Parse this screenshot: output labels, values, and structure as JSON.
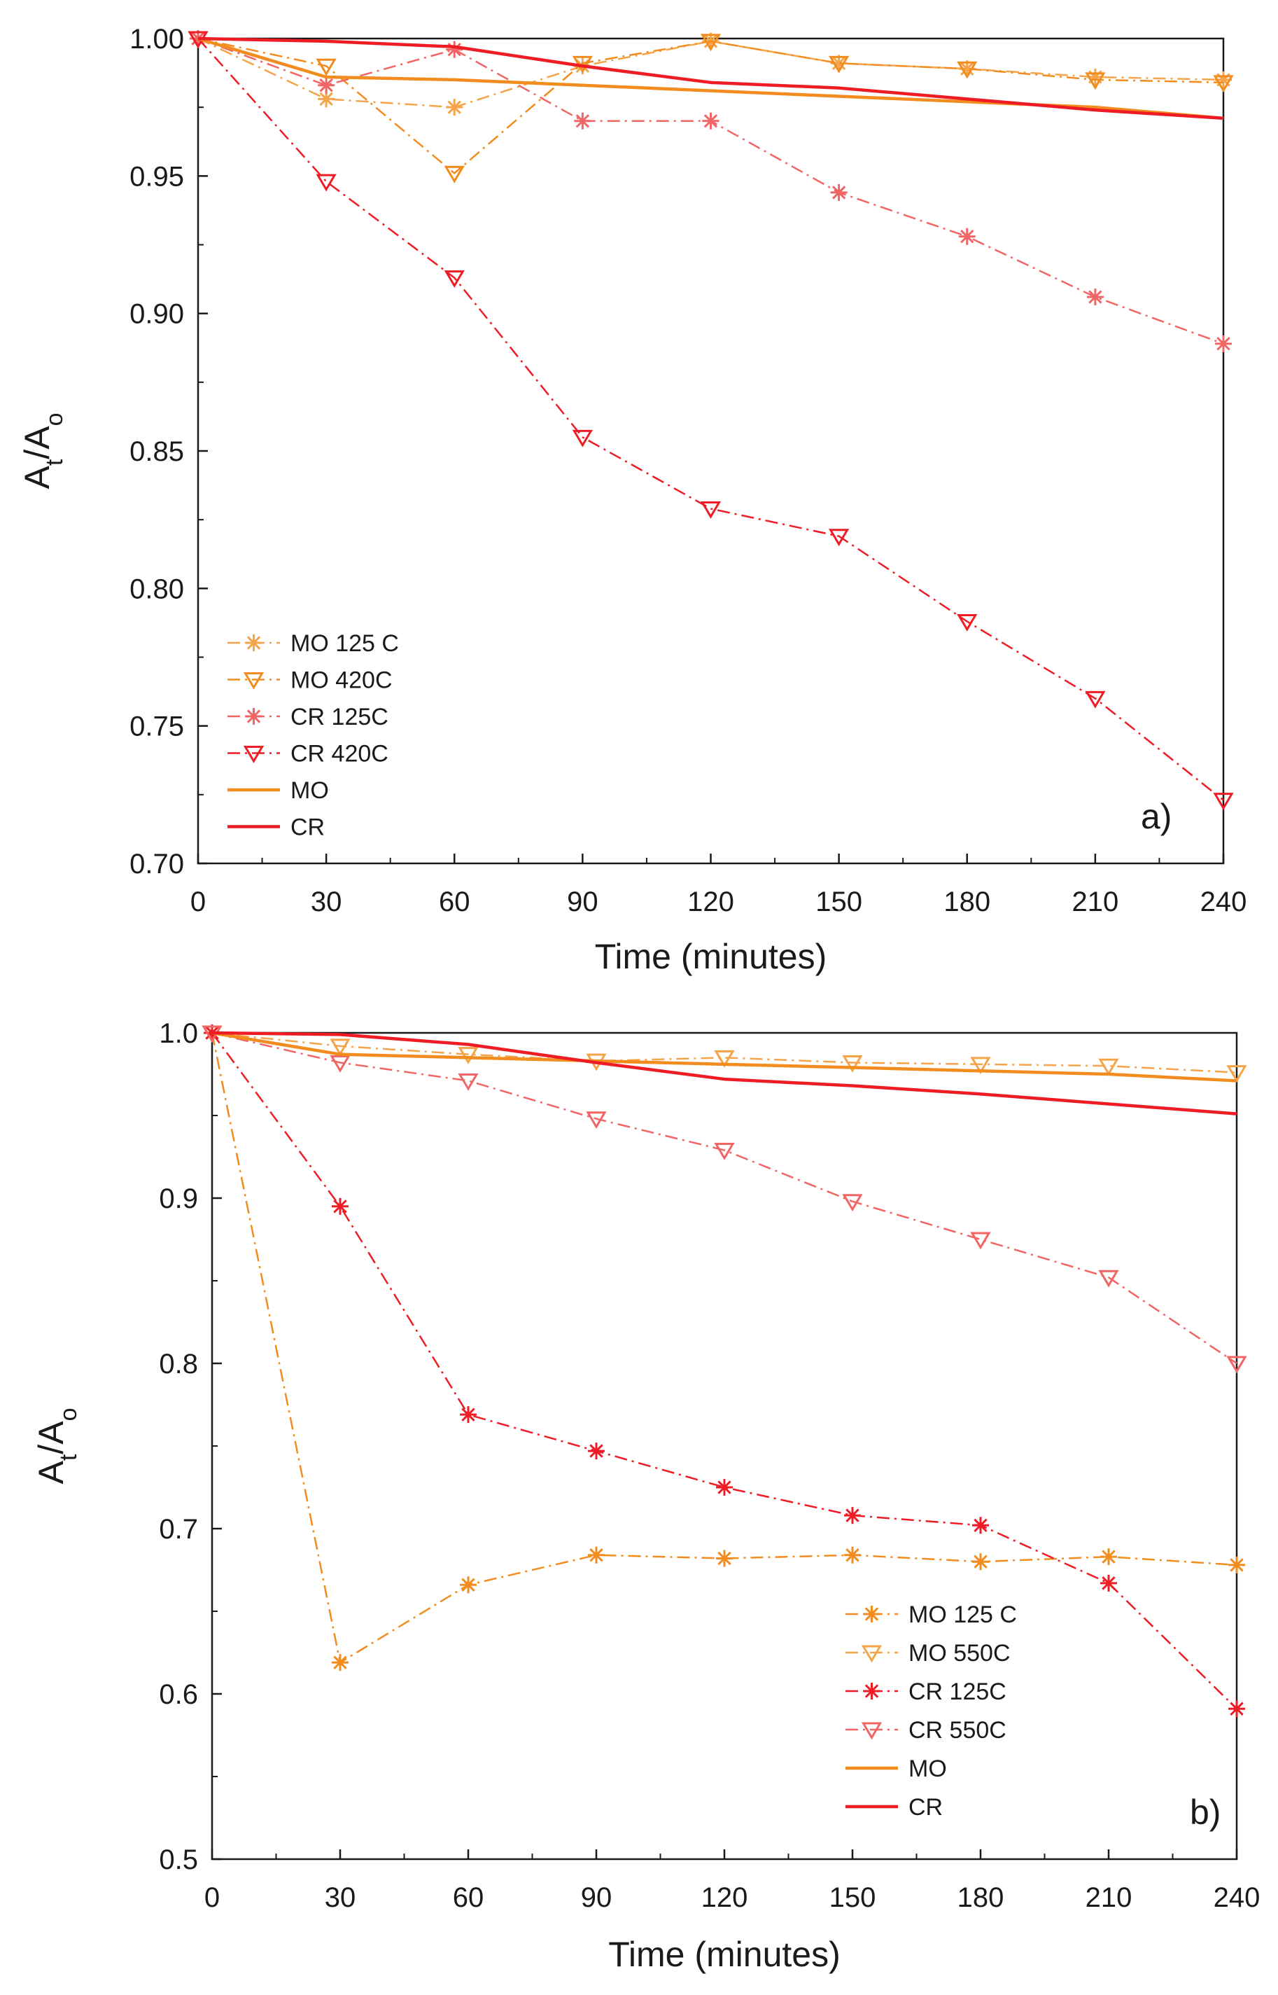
{
  "colors": {
    "orange": "#f28c1e",
    "light_orange": "#f5a44a",
    "red": "#ee1c25",
    "light_red": "#f26565",
    "axis": "#1a1a1a"
  },
  "chart_data": [
    {
      "type": "line",
      "panel": "a)",
      "xlabel": "Time (minutes)",
      "ylabel": "At/Ao",
      "xlim": [
        0,
        240
      ],
      "ylim": [
        0.7,
        1.0
      ],
      "xticks": [
        0,
        30,
        60,
        90,
        120,
        150,
        180,
        210,
        240
      ],
      "xtick_labels": [
        "0",
        "30",
        "60",
        "90",
        "120",
        "150",
        "180",
        "210",
        "240"
      ],
      "yticks": [
        0.7,
        0.75,
        0.8,
        0.85,
        0.9,
        0.95,
        1.0
      ],
      "ytick_labels": [
        "0.70",
        "0.75",
        "0.80",
        "0.85",
        "0.90",
        "0.95",
        "1.00"
      ],
      "legend_position": "lower-left",
      "series": [
        {
          "name": "MO 125 C",
          "color": "#f5a44a",
          "style": "dashdot",
          "marker": "asterisk",
          "x": [
            0,
            30,
            60,
            90,
            120,
            150,
            180,
            210,
            240
          ],
          "values": [
            1.0,
            0.978,
            0.975,
            0.99,
            0.999,
            0.991,
            0.989,
            0.986,
            0.985
          ]
        },
        {
          "name": "MO 420C",
          "color": "#f28c1e",
          "style": "dashdot",
          "marker": "triangle-down",
          "x": [
            0,
            30,
            60,
            90,
            120,
            150,
            180,
            210,
            240
          ],
          "values": [
            1.0,
            0.99,
            0.951,
            0.991,
            0.999,
            0.991,
            0.989,
            0.985,
            0.984
          ]
        },
        {
          "name": "CR 125C",
          "color": "#f26565",
          "style": "dashdot",
          "marker": "asterisk",
          "x": [
            0,
            30,
            60,
            90,
            120,
            150,
            180,
            210,
            240
          ],
          "values": [
            1.0,
            0.983,
            0.996,
            0.97,
            0.97,
            0.944,
            0.928,
            0.906,
            0.889
          ]
        },
        {
          "name": "CR 420C",
          "color": "#ee1c25",
          "style": "dashdot",
          "marker": "triangle-down",
          "x": [
            0,
            30,
            60,
            90,
            120,
            150,
            180,
            210,
            240
          ],
          "values": [
            1.0,
            0.948,
            0.913,
            0.855,
            0.829,
            0.819,
            0.788,
            0.76,
            0.723
          ]
        },
        {
          "name": "MO",
          "color": "#f28c1e",
          "style": "solid",
          "marker": "none",
          "x": [
            0,
            30,
            60,
            90,
            120,
            150,
            180,
            210,
            240
          ],
          "values": [
            1.0,
            0.986,
            0.985,
            0.983,
            0.981,
            0.979,
            0.977,
            0.975,
            0.971
          ]
        },
        {
          "name": "CR",
          "color": "#ee1c25",
          "style": "solid",
          "marker": "none",
          "x": [
            0,
            30,
            60,
            90,
            120,
            150,
            180,
            210,
            240
          ],
          "values": [
            1.0,
            0.999,
            0.997,
            0.99,
            0.984,
            0.982,
            0.978,
            0.974,
            0.971
          ]
        }
      ]
    },
    {
      "type": "line",
      "panel": "b)",
      "xlabel": "Time (minutes)",
      "ylabel": "At/Ao",
      "xlim": [
        0,
        240
      ],
      "ylim": [
        0.5,
        1.0
      ],
      "xticks": [
        0,
        30,
        60,
        90,
        120,
        150,
        180,
        210,
        240
      ],
      "xtick_labels": [
        "0",
        "30",
        "60",
        "90",
        "120",
        "150",
        "180",
        "210",
        "240"
      ],
      "yticks": [
        0.5,
        0.6,
        0.7,
        0.8,
        0.9,
        1.0
      ],
      "ytick_labels": [
        "0.5",
        "0.6",
        "0.7",
        "0.8",
        "0.9",
        "1.0"
      ],
      "legend_position": "lower-right",
      "series": [
        {
          "name": "MO 125 C",
          "color": "#f28c1e",
          "style": "dashdot",
          "marker": "asterisk",
          "x": [
            0,
            30,
            60,
            90,
            120,
            150,
            180,
            210,
            240
          ],
          "values": [
            1.0,
            0.619,
            0.666,
            0.684,
            0.682,
            0.684,
            0.68,
            0.683,
            0.678
          ]
        },
        {
          "name": "MO 550C",
          "color": "#f5a44a",
          "style": "dashdot",
          "marker": "triangle-down",
          "x": [
            0,
            30,
            60,
            90,
            120,
            150,
            180,
            210,
            240
          ],
          "values": [
            1.0,
            0.992,
            0.987,
            0.983,
            0.985,
            0.982,
            0.981,
            0.98,
            0.976
          ]
        },
        {
          "name": "CR 125C",
          "color": "#ee1c25",
          "style": "dashdot",
          "marker": "asterisk",
          "x": [
            0,
            30,
            60,
            90,
            120,
            150,
            180,
            210,
            240
          ],
          "values": [
            1.0,
            0.895,
            0.769,
            0.747,
            0.725,
            0.708,
            0.702,
            0.667,
            0.591
          ]
        },
        {
          "name": "CR 550C",
          "color": "#f26565",
          "style": "dashdot",
          "marker": "triangle-down",
          "x": [
            0,
            30,
            60,
            90,
            120,
            150,
            180,
            210,
            240
          ],
          "values": [
            1.0,
            0.982,
            0.971,
            0.948,
            0.929,
            0.898,
            0.875,
            0.852,
            0.8
          ]
        },
        {
          "name": "MO",
          "color": "#f28c1e",
          "style": "solid",
          "marker": "none",
          "x": [
            0,
            30,
            60,
            90,
            120,
            150,
            180,
            210,
            240
          ],
          "values": [
            1.0,
            0.987,
            0.985,
            0.983,
            0.981,
            0.979,
            0.977,
            0.975,
            0.971
          ]
        },
        {
          "name": "CR",
          "color": "#ee1c25",
          "style": "solid",
          "marker": "none",
          "x": [
            0,
            30,
            60,
            90,
            120,
            150,
            180,
            210,
            240
          ],
          "values": [
            1.0,
            0.999,
            0.993,
            0.982,
            0.972,
            0.968,
            0.963,
            0.957,
            0.951
          ]
        }
      ]
    }
  ]
}
